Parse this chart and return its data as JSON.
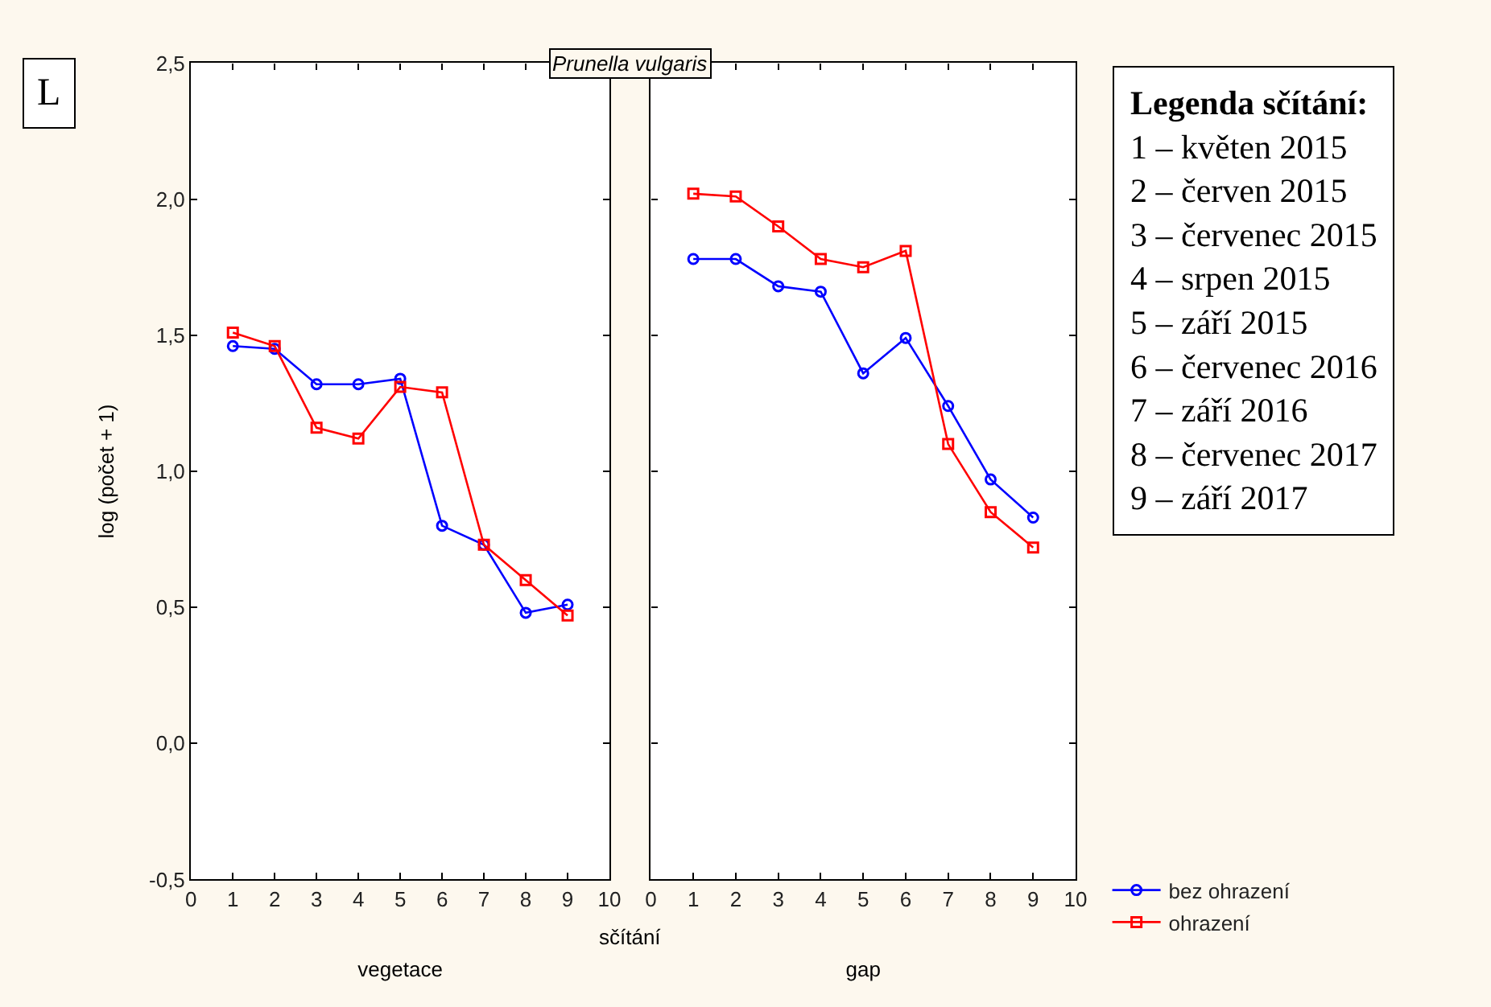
{
  "chart_data": [
    {
      "type": "line",
      "title": "Prunella vulgaris",
      "xlabel": "vegetace",
      "ylabel": "log (počet + 1)",
      "x": [
        1,
        2,
        3,
        4,
        5,
        6,
        7,
        8,
        9
      ],
      "xlim": [
        0,
        10
      ],
      "xticks": [
        0,
        1,
        2,
        3,
        4,
        5,
        6,
        7,
        8,
        9,
        10
      ],
      "ylim": [
        -0.5,
        2.5
      ],
      "yticks": [
        {
          "value": -0.5,
          "label": "-0,5"
        },
        {
          "value": 0,
          "label": "0,0"
        },
        {
          "value": 0.5,
          "label": "0,5"
        },
        {
          "value": 1,
          "label": "1,0"
        },
        {
          "value": 1.5,
          "label": "1,5"
        },
        {
          "value": 2,
          "label": "2,0"
        },
        {
          "value": 2.5,
          "label": "2,5"
        }
      ],
      "grid": false,
      "legend": "bottom right",
      "annotations": [
        "L",
        "sčítání",
        "Legenda sčítání:\n1 – květen 2015\n2 – červen 2015\n3 – červenec 2015\n4 – srpen 2015\n5 – září 2015\n6 – červenec 2016\n7 – září 2016\n8 – červenec 2017\n9 – září 2017"
      ],
      "series": [
        {
          "name": "bez ohrazení",
          "color": "#0000ff",
          "marker": "circle",
          "values": [
            1.46,
            1.45,
            1.32,
            1.32,
            1.34,
            0.8,
            0.73,
            0.48,
            0.51
          ]
        },
        {
          "name": "ohrazení",
          "color": "#ff0000",
          "marker": "square",
          "values": [
            1.51,
            1.46,
            1.16,
            1.12,
            1.31,
            1.29,
            0.73,
            0.6,
            0.47
          ]
        }
      ]
    },
    {
      "type": "line",
      "xlabel": "gap",
      "x": [
        1,
        2,
        3,
        4,
        5,
        6,
        7,
        8,
        9
      ],
      "xlim": [
        0,
        10
      ],
      "xticks": [
        0,
        1,
        2,
        3,
        4,
        5,
        6,
        7,
        8,
        9,
        10
      ],
      "ylim": [
        -0.5,
        2.5
      ],
      "yticks": [
        {
          "value": -0.5,
          "label": null
        },
        {
          "value": 0,
          "label": null
        },
        {
          "value": 0.5,
          "label": null
        },
        {
          "value": 1,
          "label": null
        },
        {
          "value": 1.5,
          "label": null
        },
        {
          "value": 2,
          "label": null
        },
        {
          "value": 2.5,
          "label": null
        }
      ],
      "grid": false,
      "tick_labels": "x",
      "series": [
        {
          "color": "#0000ff",
          "marker": "circle",
          "values": [
            1.78,
            1.78,
            1.68,
            1.66,
            1.36,
            1.49,
            1.24,
            0.97,
            0.83
          ]
        },
        {
          "color": "#ff0000",
          "marker": "square",
          "values": [
            2.02,
            2.01,
            1.9,
            1.78,
            1.75,
            1.81,
            1.1,
            0.85,
            0.72
          ]
        }
      ]
    }
  ]
}
